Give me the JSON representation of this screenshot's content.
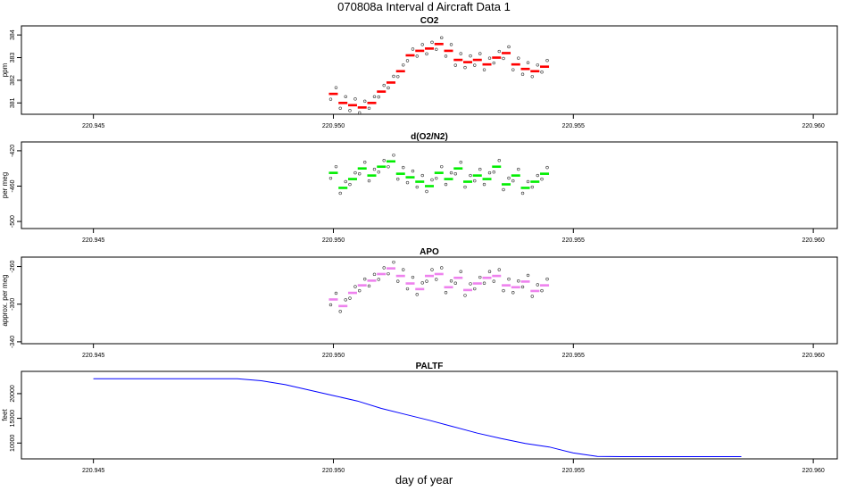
{
  "page": {
    "title": "070808a   Interval d Aircraft Data 1",
    "xlabel": "day of year"
  },
  "chart_data": [
    {
      "type": "scatter",
      "title": "CO2",
      "ylabel": "ppm",
      "xlim": [
        220.9435,
        220.9605
      ],
      "ylim": [
        380.5,
        384.4
      ],
      "x_ticks": [
        "220.945",
        "220.950",
        "220.955",
        "220.960"
      ],
      "y_ticks": [
        "381",
        "382",
        "383",
        "384"
      ],
      "color": "#ff0000",
      "series": [
        {
          "x": [
            220.95,
            220.9502,
            220.9504,
            220.9506,
            220.9508,
            220.951,
            220.9512,
            220.9514,
            220.9516,
            220.9518,
            220.952,
            220.9522,
            220.9524,
            220.9526,
            220.9528,
            220.953,
            220.9532,
            220.9534,
            220.9536,
            220.9538,
            220.954,
            220.9542,
            220.9544
          ],
          "values": [
            381.4,
            381.0,
            380.9,
            380.8,
            381.0,
            381.5,
            381.9,
            382.4,
            383.1,
            383.3,
            383.4,
            383.6,
            383.3,
            382.9,
            382.8,
            382.9,
            382.7,
            383.0,
            383.2,
            382.7,
            382.5,
            382.4,
            382.6
          ]
        }
      ]
    },
    {
      "type": "scatter",
      "title": "d(O2/N2)",
      "ylabel": "per meg",
      "xlim": [
        220.9435,
        220.9605
      ],
      "ylim": [
        -508,
        -410
      ],
      "x_ticks": [
        "220.945",
        "220.950",
        "220.955",
        "220.960"
      ],
      "y_ticks": [
        "-500",
        "-460",
        "-420"
      ],
      "color": "#00ee00",
      "series": [
        {
          "x": [
            220.95,
            220.9502,
            220.9504,
            220.9506,
            220.9508,
            220.951,
            220.9512,
            220.9514,
            220.9516,
            220.9518,
            220.952,
            220.9522,
            220.9524,
            220.9526,
            220.9528,
            220.953,
            220.9532,
            220.9534,
            220.9536,
            220.9538,
            220.954,
            220.9542,
            220.9544
          ],
          "values": [
            -445,
            -462,
            -452,
            -440,
            -448,
            -438,
            -432,
            -446,
            -450,
            -455,
            -460,
            -445,
            -452,
            -440,
            -455,
            -448,
            -452,
            -438,
            -458,
            -448,
            -462,
            -455,
            -446
          ]
        }
      ]
    },
    {
      "type": "scatter",
      "title": "APO",
      "ylabel": "approx. per meg",
      "xlim": [
        220.9435,
        220.9605
      ],
      "ylim": [
        -342,
        -250
      ],
      "x_ticks": [
        "220.945",
        "220.950",
        "220.955",
        "220.960"
      ],
      "y_ticks": [
        "-340",
        "-300",
        "-260"
      ],
      "color": "#ee82ee",
      "series": [
        {
          "x": [
            220.95,
            220.9502,
            220.9504,
            220.9506,
            220.9508,
            220.951,
            220.9512,
            220.9514,
            220.9516,
            220.9518,
            220.952,
            220.9522,
            220.9524,
            220.9526,
            220.9528,
            220.953,
            220.9532,
            220.9534,
            220.9536,
            220.9538,
            220.954,
            220.9542,
            220.9544
          ],
          "values": [
            -295,
            -302,
            -288,
            -280,
            -275,
            -268,
            -262,
            -270,
            -278,
            -284,
            -270,
            -268,
            -282,
            -272,
            -285,
            -278,
            -272,
            -270,
            -280,
            -282,
            -276,
            -286,
            -280
          ]
        }
      ]
    },
    {
      "type": "line",
      "title": "PALTF",
      "ylabel": "feet",
      "xlim": [
        220.9435,
        220.9605
      ],
      "ylim": [
        6800,
        24500
      ],
      "x_ticks": [
        "220.945",
        "220.950",
        "220.955",
        "220.960"
      ],
      "y_ticks": [
        "10000",
        "15000",
        "20000"
      ],
      "color": "#0000ff",
      "series": [
        {
          "x": [
            220.945,
            220.946,
            220.947,
            220.948,
            220.9485,
            220.949,
            220.95,
            220.9505,
            220.951,
            220.9515,
            220.952,
            220.9525,
            220.953,
            220.9535,
            220.954,
            220.9545,
            220.955,
            220.9555,
            220.956,
            220.957,
            220.958,
            220.9585
          ],
          "values": [
            23000,
            23000,
            23000,
            23000,
            22600,
            21800,
            19600,
            18500,
            17000,
            15800,
            14600,
            13300,
            12000,
            10900,
            9900,
            9200,
            8000,
            7300,
            7250,
            7250,
            7250,
            7250
          ]
        }
      ]
    }
  ]
}
